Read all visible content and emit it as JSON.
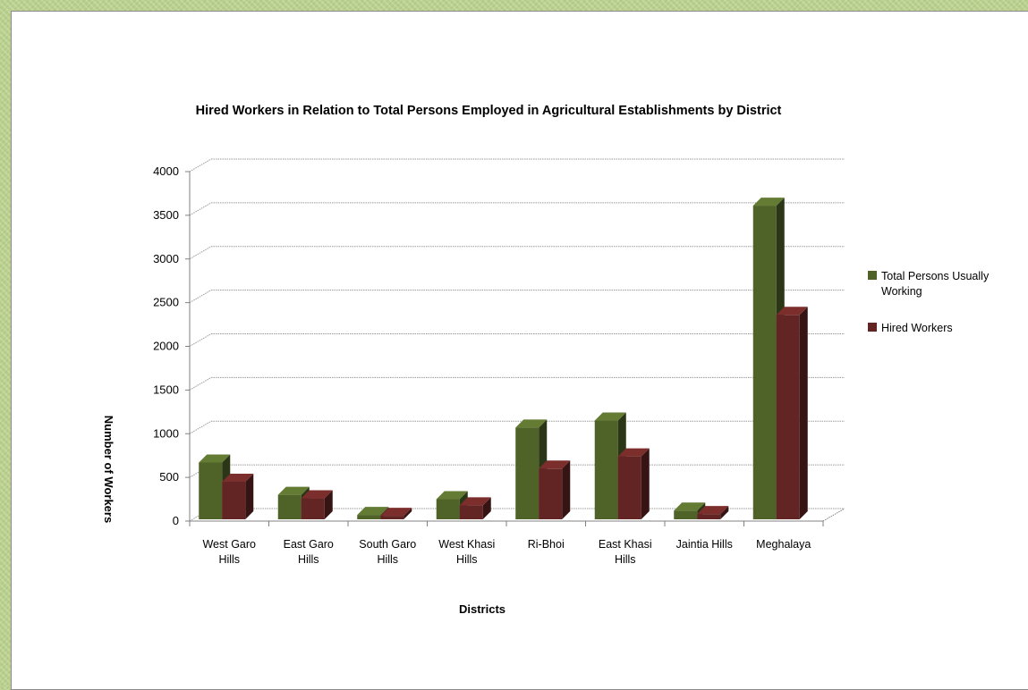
{
  "chart_data": {
    "type": "bar",
    "title": "Hired Workers in Relation to Total Persons Employed in Agricultural Establishments by District",
    "xlabel": "Districts",
    "ylabel": "Number of Workers",
    "ylim": [
      0,
      4000
    ],
    "yticks": [
      0,
      500,
      1000,
      1500,
      2000,
      2500,
      3000,
      3500,
      4000
    ],
    "categories": [
      [
        "West Garo",
        "Hills"
      ],
      [
        "East Garo",
        "Hills"
      ],
      [
        "South Garo",
        "Hills"
      ],
      [
        "West Khasi",
        "Hills"
      ],
      [
        "Ri-Bhoi"
      ],
      [
        "East Khasi",
        "Hills"
      ],
      [
        "Jaintia Hills"
      ],
      [
        "Meghalaya"
      ]
    ],
    "series": [
      {
        "name": "Total Persons Usually Working",
        "legend_lines": [
          "Total Persons Usually",
          "Working"
        ],
        "color": "#4f6228",
        "values": [
          650,
          280,
          50,
          230,
          1050,
          1130,
          100,
          3590
        ]
      },
      {
        "name": "Hired Workers",
        "legend_lines": [
          "Hired Workers"
        ],
        "color": "#632523",
        "values": [
          430,
          240,
          40,
          160,
          580,
          720,
          60,
          2340
        ]
      }
    ],
    "grid": true,
    "legend_position": "right",
    "style": "3d-column"
  }
}
